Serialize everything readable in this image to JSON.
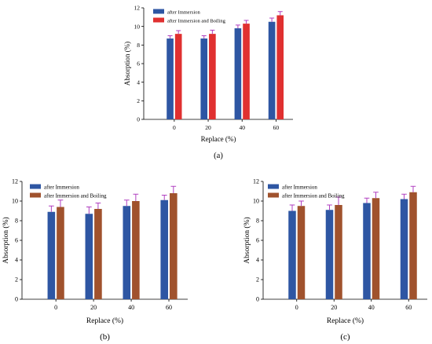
{
  "chart_data": [
    {
      "panel_label": "(a)",
      "type": "bar",
      "categories": [
        "0",
        "20",
        "40",
        "60"
      ],
      "xlabel": "Replace (%)",
      "ylabel": "Absorption (%)",
      "ylim": [
        0,
        12
      ],
      "yticks": [
        "0",
        "2",
        "4",
        "6",
        "8",
        "10",
        "12"
      ],
      "legend_position": "top-left",
      "grid": false,
      "series": [
        {
          "name": "after Immersion",
          "color": "#2e56a3",
          "values": [
            8.7,
            8.7,
            9.8,
            10.5
          ],
          "errors": [
            0.3,
            0.3,
            0.35,
            0.4
          ]
        },
        {
          "name": "after Immersion and Boiling",
          "color": "#e03030",
          "values": [
            9.2,
            9.2,
            10.3,
            11.2
          ],
          "errors": [
            0.35,
            0.4,
            0.35,
            0.4
          ]
        }
      ]
    },
    {
      "panel_label": "(b)",
      "type": "bar",
      "categories": [
        "0",
        "20",
        "40",
        "60"
      ],
      "xlabel": "Replace (%)",
      "ylabel": "Absorption (%)",
      "ylim": [
        0,
        12
      ],
      "yticks": [
        "0",
        "2",
        "4",
        "6",
        "8",
        "10",
        "12"
      ],
      "legend_position": "top-left",
      "grid": false,
      "series": [
        {
          "name": "after Immersion",
          "color": "#2e56a3",
          "values": [
            8.9,
            8.7,
            9.5,
            10.1
          ],
          "errors": [
            0.6,
            0.7,
            0.6,
            0.5
          ]
        },
        {
          "name": "after Immersion and Boiling",
          "color": "#a0522d",
          "values": [
            9.4,
            9.2,
            10.0,
            10.8
          ],
          "errors": [
            0.7,
            0.6,
            0.7,
            0.7
          ]
        }
      ]
    },
    {
      "panel_label": "(c)",
      "type": "bar",
      "categories": [
        "0",
        "20",
        "40",
        "60"
      ],
      "xlabel": "Replace (%)",
      "ylabel": "Absorption (%)",
      "ylim": [
        0,
        12
      ],
      "yticks": [
        "0",
        "2",
        "4",
        "6",
        "8",
        "10",
        "12"
      ],
      "legend_position": "top-left",
      "grid": false,
      "series": [
        {
          "name": "after Immersion",
          "color": "#2e56a3",
          "values": [
            9.0,
            9.1,
            9.8,
            10.2
          ],
          "errors": [
            0.6,
            0.5,
            0.5,
            0.5
          ]
        },
        {
          "name": "after Immersion and Boiling",
          "color": "#a0522d",
          "values": [
            9.5,
            9.6,
            10.3,
            10.9
          ],
          "errors": [
            0.5,
            0.8,
            0.6,
            0.6
          ]
        }
      ]
    }
  ]
}
